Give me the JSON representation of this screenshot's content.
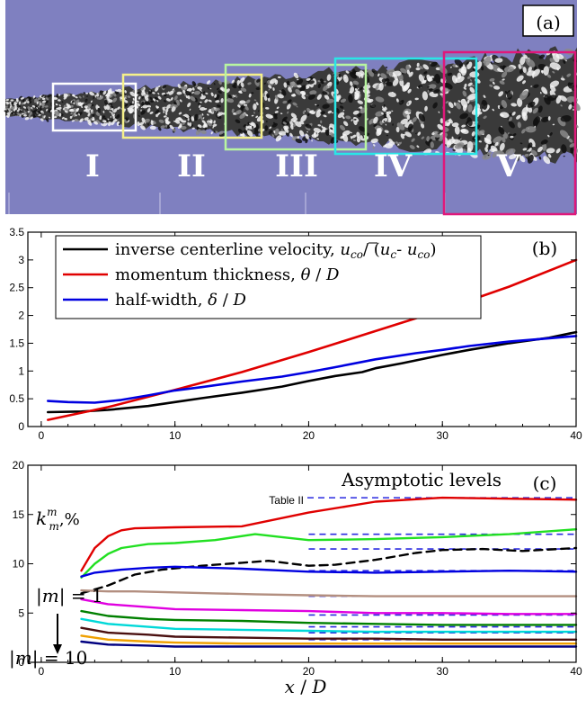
{
  "panel_a": {
    "label": "(a)",
    "regions": [
      {
        "name": "I",
        "color": "#ffffff"
      },
      {
        "name": "II",
        "color": "#f5f08a"
      },
      {
        "name": "III",
        "color": "#b8f5a0"
      },
      {
        "name": "IV",
        "color": "#29e6e6"
      },
      {
        "name": "V",
        "color": "#e0187a"
      }
    ],
    "background_color": "#7f80c0"
  },
  "chart_data": [
    {
      "type": "line",
      "panel_label": "(b)",
      "xlim": [
        -1,
        40
      ],
      "ylim": [
        0,
        3.5
      ],
      "xticks": [
        "0",
        "10",
        "20",
        "30",
        "40"
      ],
      "yticks": [
        "0",
        "0.5",
        "1",
        "1.5",
        "2",
        "2.5",
        "3",
        "3.5"
      ],
      "legend_position": "top-left",
      "series": [
        {
          "name": "inverse centerline velocity, u_co / (ū_c - u_co)",
          "legend_parts": [
            "inverse centerline velocity, ",
            "u",
            "co",
            "/ (",
            "u",
            "c",
            "- ",
            "u",
            "co",
            ")"
          ],
          "color": "#000000",
          "x": [
            0.5,
            3,
            5,
            8,
            10,
            12,
            15,
            18,
            20,
            22,
            24,
            25,
            27,
            30,
            32,
            35,
            38,
            40
          ],
          "y": [
            0.26,
            0.27,
            0.3,
            0.37,
            0.44,
            0.51,
            0.61,
            0.72,
            0.82,
            0.91,
            0.98,
            1.05,
            1.14,
            1.29,
            1.38,
            1.5,
            1.6,
            1.7
          ]
        },
        {
          "name": "momentum thickness, θ / D",
          "legend_parts": [
            "momentum thickness, ",
            "θ",
            " / ",
            "D"
          ],
          "color": "#e00000",
          "x": [
            0.5,
            5,
            10,
            15,
            20,
            25,
            30,
            35,
            40
          ],
          "y": [
            0.12,
            0.35,
            0.66,
            0.98,
            1.34,
            1.72,
            2.1,
            2.52,
            3.0
          ]
        },
        {
          "name": "half-width, δ / D",
          "legend_parts": [
            "half-width, ",
            "δ",
            " / ",
            "D"
          ],
          "color": "#0000e0",
          "x": [
            0.5,
            2,
            4,
            6,
            8,
            10,
            12,
            15,
            18,
            20,
            22,
            25,
            28,
            30,
            32,
            35,
            38,
            40
          ],
          "y": [
            0.46,
            0.44,
            0.43,
            0.48,
            0.56,
            0.65,
            0.71,
            0.81,
            0.9,
            0.98,
            1.07,
            1.21,
            1.32,
            1.38,
            1.45,
            1.53,
            1.59,
            1.63
          ]
        }
      ]
    },
    {
      "type": "line",
      "panel_label": "(c)",
      "xlabel": "x / D",
      "ylabel": "k_m^m,%",
      "ylabel_parts": [
        "k",
        "m",
        "m",
        ",%"
      ],
      "xlim": [
        -1,
        40
      ],
      "ylim": [
        0,
        20
      ],
      "xticks": [
        "0",
        "10",
        "20",
        "30",
        "40"
      ],
      "yticks": [
        "0",
        "5",
        "10",
        "15",
        "20"
      ],
      "annotation_title": "Asymptotic levels",
      "table_label": "Table II",
      "m1_label_parts": [
        "|",
        "m",
        "| = 1"
      ],
      "m10_label_parts": [
        "|",
        "m",
        "| = 10"
      ],
      "asymptotic_levels": [
        16.7,
        13.0,
        11.5,
        9.3,
        6.7,
        4.8,
        3.6,
        3.0,
        2.3,
        1.6
      ],
      "series": [
        {
          "color": "#e00000",
          "x": [
            3,
            4,
            5,
            6,
            7,
            10,
            15,
            20,
            25,
            30,
            35,
            40
          ],
          "y": [
            9.3,
            11.6,
            12.8,
            13.4,
            13.6,
            13.7,
            13.8,
            15.2,
            16.3,
            16.7,
            16.6,
            16.5
          ]
        },
        {
          "color": "#22e022",
          "x": [
            3,
            4,
            5,
            6,
            8,
            10,
            13,
            16,
            18,
            20,
            25,
            30,
            35,
            40
          ],
          "y": [
            8.6,
            10.0,
            11.0,
            11.6,
            12.0,
            12.1,
            12.4,
            13.0,
            12.7,
            12.4,
            12.5,
            12.7,
            13.0,
            13.5
          ]
        },
        {
          "color": "#000000",
          "dashed": true,
          "x": [
            3,
            5,
            7,
            9,
            12,
            15,
            17,
            20,
            22,
            25,
            28,
            30,
            33,
            36,
            40
          ],
          "y": [
            7.0,
            7.8,
            8.9,
            9.4,
            9.8,
            10.1,
            10.3,
            9.8,
            9.9,
            10.4,
            11.1,
            11.4,
            11.5,
            11.3,
            11.6
          ]
        },
        {
          "color": "#0000e0",
          "x": [
            3,
            4,
            6,
            8,
            10,
            15,
            20,
            25,
            30,
            35,
            40
          ],
          "y": [
            8.7,
            9.1,
            9.4,
            9.6,
            9.7,
            9.5,
            9.2,
            9.1,
            9.2,
            9.3,
            9.2
          ]
        },
        {
          "color": "#b38f80",
          "x": [
            3,
            5,
            7,
            10,
            13,
            16,
            20,
            25,
            30,
            35,
            40
          ],
          "y": [
            7.3,
            7.2,
            7.2,
            7.1,
            7.0,
            6.9,
            6.8,
            6.7,
            6.7,
            6.7,
            6.7
          ]
        },
        {
          "color": "#e000e0",
          "x": [
            3,
            5,
            8,
            10,
            15,
            20,
            25,
            30,
            35,
            40
          ],
          "y": [
            6.4,
            5.9,
            5.6,
            5.4,
            5.3,
            5.2,
            5.0,
            5.0,
            4.9,
            4.9
          ]
        },
        {
          "color": "#008000",
          "x": [
            3,
            5,
            8,
            10,
            15,
            20,
            25,
            30,
            35,
            40
          ],
          "y": [
            5.2,
            4.7,
            4.4,
            4.3,
            4.2,
            4.0,
            3.9,
            3.8,
            3.8,
            3.8
          ]
        },
        {
          "color": "#00d8d8",
          "x": [
            3,
            5,
            8,
            10,
            15,
            20,
            25,
            30,
            35,
            40
          ],
          "y": [
            4.4,
            3.9,
            3.6,
            3.4,
            3.3,
            3.2,
            3.1,
            3.1,
            3.1,
            3.1
          ]
        },
        {
          "color": "#4a1010",
          "x": [
            3,
            5,
            8,
            10,
            15,
            20,
            25,
            30,
            35,
            40
          ],
          "y": [
            3.5,
            3.0,
            2.8,
            2.6,
            2.5,
            2.4,
            2.4,
            2.3,
            2.3,
            2.3
          ]
        },
        {
          "color": "#f0a000",
          "x": [
            3,
            5,
            8,
            10,
            15,
            20,
            25,
            30,
            35,
            40
          ],
          "y": [
            2.7,
            2.3,
            2.1,
            2.0,
            1.9,
            1.9,
            1.9,
            1.9,
            1.9,
            1.9
          ]
        },
        {
          "color": "#000080",
          "x": [
            3,
            5,
            8,
            10,
            15,
            20,
            25,
            30,
            35,
            40
          ],
          "y": [
            2.1,
            1.8,
            1.7,
            1.6,
            1.6,
            1.6,
            1.6,
            1.6,
            1.6,
            1.6
          ]
        }
      ]
    }
  ]
}
